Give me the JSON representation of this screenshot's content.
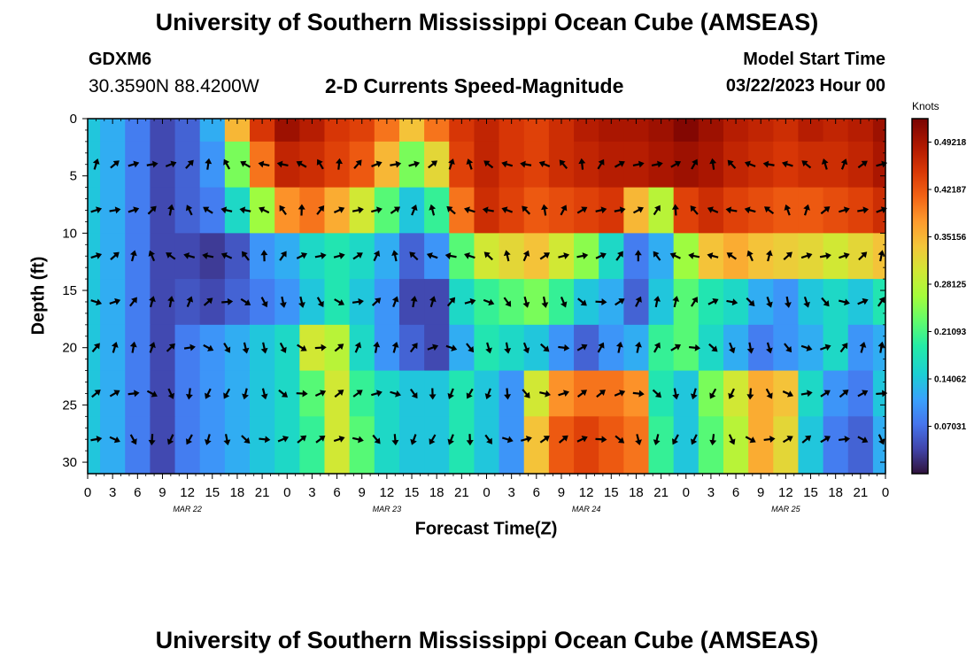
{
  "header": {
    "title": "University of Southern Mississippi Ocean Cube (AMSEAS)",
    "station_id": "GDXM6",
    "coords": "30.3590N  88.4200W",
    "subtitle": "2-D Currents Speed-Magnitude",
    "model_start_label": "Model Start Time",
    "model_start_value": "03/22/2023 Hour 00"
  },
  "footer": {
    "title": "University of Southern Mississippi Ocean Cube (AMSEAS)"
  },
  "chart_data": {
    "type": "heatmap",
    "title": "2-D Currents Speed-Magnitude",
    "xlabel": "Forecast Time(Z)",
    "ylabel": "Depth (ft)",
    "x_tick_labels": [
      "0",
      "3",
      "6",
      "9",
      "12",
      "15",
      "18",
      "21",
      "0",
      "3",
      "6",
      "9",
      "12",
      "15",
      "18",
      "21",
      "0",
      "3",
      "6",
      "9",
      "12",
      "15",
      "18",
      "21",
      "0",
      "3",
      "6",
      "9",
      "12",
      "15",
      "18",
      "21",
      "0"
    ],
    "date_labels": [
      {
        "label": "MAR 22",
        "hour": 12
      },
      {
        "label": "MAR 23",
        "hour": 36
      },
      {
        "label": "MAR 24",
        "hour": 60
      },
      {
        "label": "MAR 25",
        "hour": 84
      }
    ],
    "xlim_hours": [
      0,
      96
    ],
    "y_tick_labels": [
      "0",
      "5",
      "10",
      "15",
      "20",
      "25",
      "30"
    ],
    "ylim_ft": [
      0,
      31
    ],
    "colorbar": {
      "units": "Knots",
      "range": [
        0,
        0.527
      ],
      "tick_labels": [
        "0.49218",
        "0.42187",
        "0.35156",
        "0.28125",
        "0.21093",
        "0.14062",
        "0.07031"
      ],
      "tick_values": [
        0.49218,
        0.42187,
        0.35156,
        0.28125,
        0.21093,
        0.14062,
        0.07031
      ]
    },
    "hours": [
      0,
      3,
      6,
      9,
      12,
      15,
      18,
      21,
      24,
      27,
      30,
      33,
      36,
      39,
      42,
      45,
      48,
      51,
      54,
      57,
      60,
      63,
      66,
      69,
      72,
      75,
      78,
      81,
      84,
      87,
      90,
      93,
      96
    ],
    "depths_ft": [
      0,
      4,
      8,
      12,
      16,
      20,
      24,
      28
    ],
    "speed_knots": [
      [
        0.14,
        0.12,
        0.08,
        0.04,
        0.06,
        0.12,
        0.35,
        0.45,
        0.5,
        0.48,
        0.45,
        0.44,
        0.4,
        0.34,
        0.4,
        0.45,
        0.47,
        0.45,
        0.44,
        0.46,
        0.48,
        0.49,
        0.49,
        0.5,
        0.52,
        0.5,
        0.48,
        0.47,
        0.46,
        0.48,
        0.47,
        0.48,
        0.5
      ],
      [
        0.14,
        0.12,
        0.08,
        0.04,
        0.06,
        0.1,
        0.24,
        0.4,
        0.47,
        0.46,
        0.44,
        0.42,
        0.35,
        0.24,
        0.32,
        0.44,
        0.47,
        0.45,
        0.44,
        0.46,
        0.47,
        0.48,
        0.48,
        0.49,
        0.5,
        0.49,
        0.47,
        0.46,
        0.45,
        0.46,
        0.46,
        0.47,
        0.49
      ],
      [
        0.14,
        0.12,
        0.08,
        0.04,
        0.06,
        0.08,
        0.16,
        0.26,
        0.38,
        0.4,
        0.36,
        0.3,
        0.22,
        0.14,
        0.2,
        0.4,
        0.46,
        0.44,
        0.42,
        0.43,
        0.44,
        0.45,
        0.35,
        0.28,
        0.44,
        0.46,
        0.44,
        0.43,
        0.42,
        0.42,
        0.43,
        0.44,
        0.46
      ],
      [
        0.14,
        0.12,
        0.08,
        0.04,
        0.04,
        0.03,
        0.05,
        0.1,
        0.12,
        0.16,
        0.18,
        0.16,
        0.12,
        0.06,
        0.1,
        0.22,
        0.3,
        0.32,
        0.34,
        0.3,
        0.25,
        0.16,
        0.08,
        0.12,
        0.26,
        0.34,
        0.36,
        0.34,
        0.33,
        0.32,
        0.3,
        0.32,
        0.34
      ],
      [
        0.14,
        0.12,
        0.08,
        0.04,
        0.05,
        0.04,
        0.06,
        0.08,
        0.1,
        0.14,
        0.18,
        0.14,
        0.1,
        0.04,
        0.04,
        0.16,
        0.2,
        0.22,
        0.24,
        0.2,
        0.14,
        0.12,
        0.06,
        0.14,
        0.22,
        0.18,
        0.16,
        0.12,
        0.1,
        0.14,
        0.16,
        0.14,
        0.18
      ],
      [
        0.14,
        0.12,
        0.08,
        0.04,
        0.08,
        0.1,
        0.12,
        0.14,
        0.16,
        0.3,
        0.28,
        0.16,
        0.1,
        0.06,
        0.04,
        0.12,
        0.18,
        0.16,
        0.14,
        0.1,
        0.06,
        0.1,
        0.12,
        0.2,
        0.22,
        0.16,
        0.12,
        0.08,
        0.1,
        0.12,
        0.16,
        0.1,
        0.12
      ],
      [
        0.14,
        0.12,
        0.08,
        0.04,
        0.08,
        0.1,
        0.12,
        0.14,
        0.16,
        0.22,
        0.3,
        0.2,
        0.16,
        0.14,
        0.14,
        0.18,
        0.14,
        0.1,
        0.3,
        0.38,
        0.4,
        0.4,
        0.38,
        0.18,
        0.14,
        0.24,
        0.3,
        0.36,
        0.34,
        0.16,
        0.1,
        0.08,
        0.14
      ],
      [
        0.14,
        0.12,
        0.08,
        0.04,
        0.08,
        0.1,
        0.12,
        0.14,
        0.16,
        0.2,
        0.3,
        0.22,
        0.16,
        0.14,
        0.14,
        0.18,
        0.14,
        0.1,
        0.34,
        0.42,
        0.44,
        0.42,
        0.4,
        0.2,
        0.14,
        0.22,
        0.28,
        0.36,
        0.32,
        0.14,
        0.08,
        0.06,
        0.12
      ]
    ]
  }
}
